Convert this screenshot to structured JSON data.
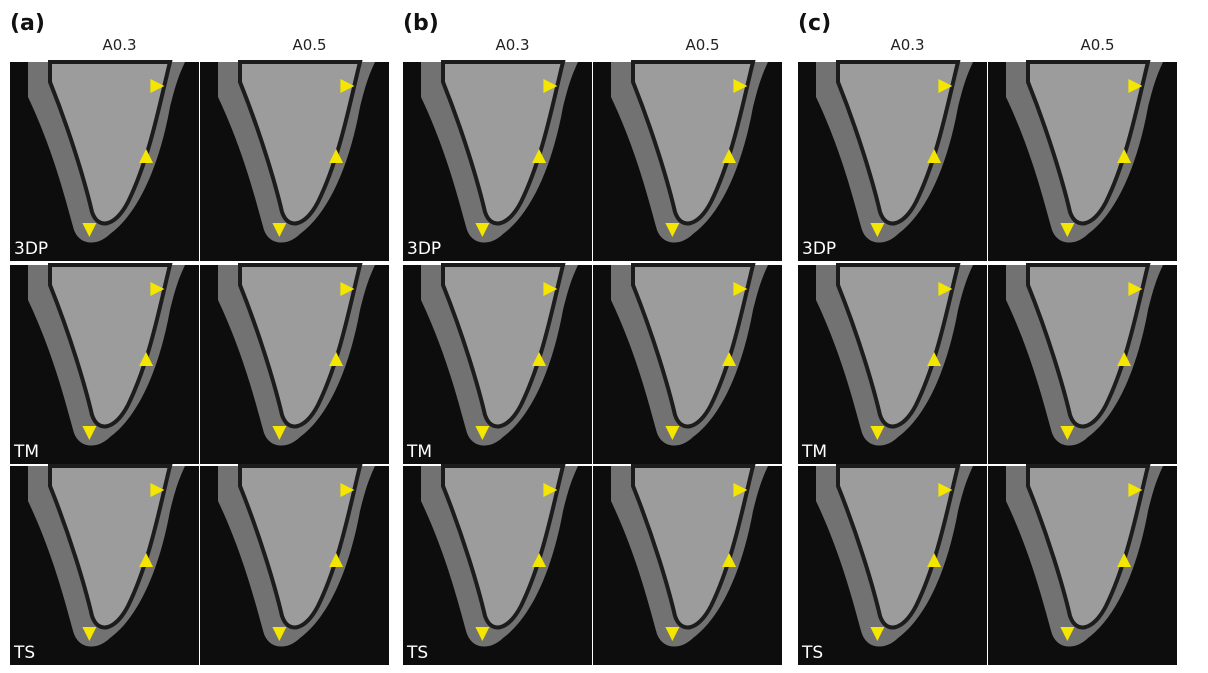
{
  "panels": [
    {
      "label": "(a)",
      "columns": [
        "A0.3",
        "A0.5"
      ],
      "rows": [
        "3DP",
        "TM",
        "TS"
      ]
    },
    {
      "label": "(b)",
      "columns": [
        "A0.3",
        "A0.5"
      ],
      "rows": [
        "3DP",
        "TM",
        "TS"
      ]
    },
    {
      "label": "(c)",
      "columns": [
        "A0.3",
        "A0.5"
      ],
      "rows": [
        "3DP",
        "TM",
        "TS"
      ]
    }
  ]
}
